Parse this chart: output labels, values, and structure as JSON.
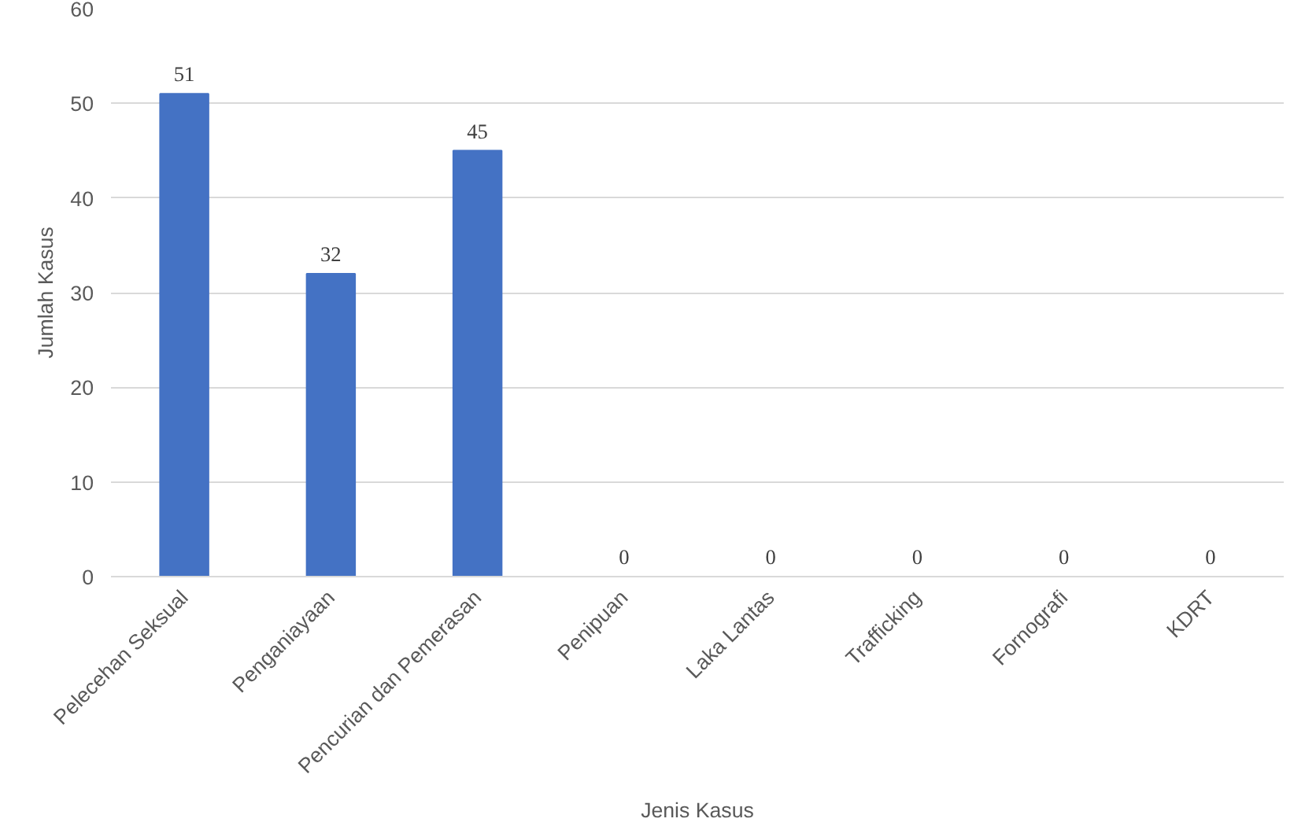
{
  "chart_data": {
    "type": "bar",
    "xlabel": "Jenis Kasus",
    "ylabel": "Jumlah Kasus",
    "categories": [
      "Pelecehan Seksual",
      "Penganiayaan",
      "Pencurian dan Pemerasan",
      "Penipuan",
      "Laka Lantas",
      "Trafficking",
      "Fornografi",
      "KDRT"
    ],
    "values": [
      51,
      32,
      45,
      0,
      0,
      0,
      0,
      0
    ],
    "color": "#4472c4",
    "ylim": [
      0,
      60
    ],
    "yticks": [
      0,
      10,
      20,
      30,
      40,
      50,
      60
    ],
    "grid": "y",
    "data_labels": true
  }
}
